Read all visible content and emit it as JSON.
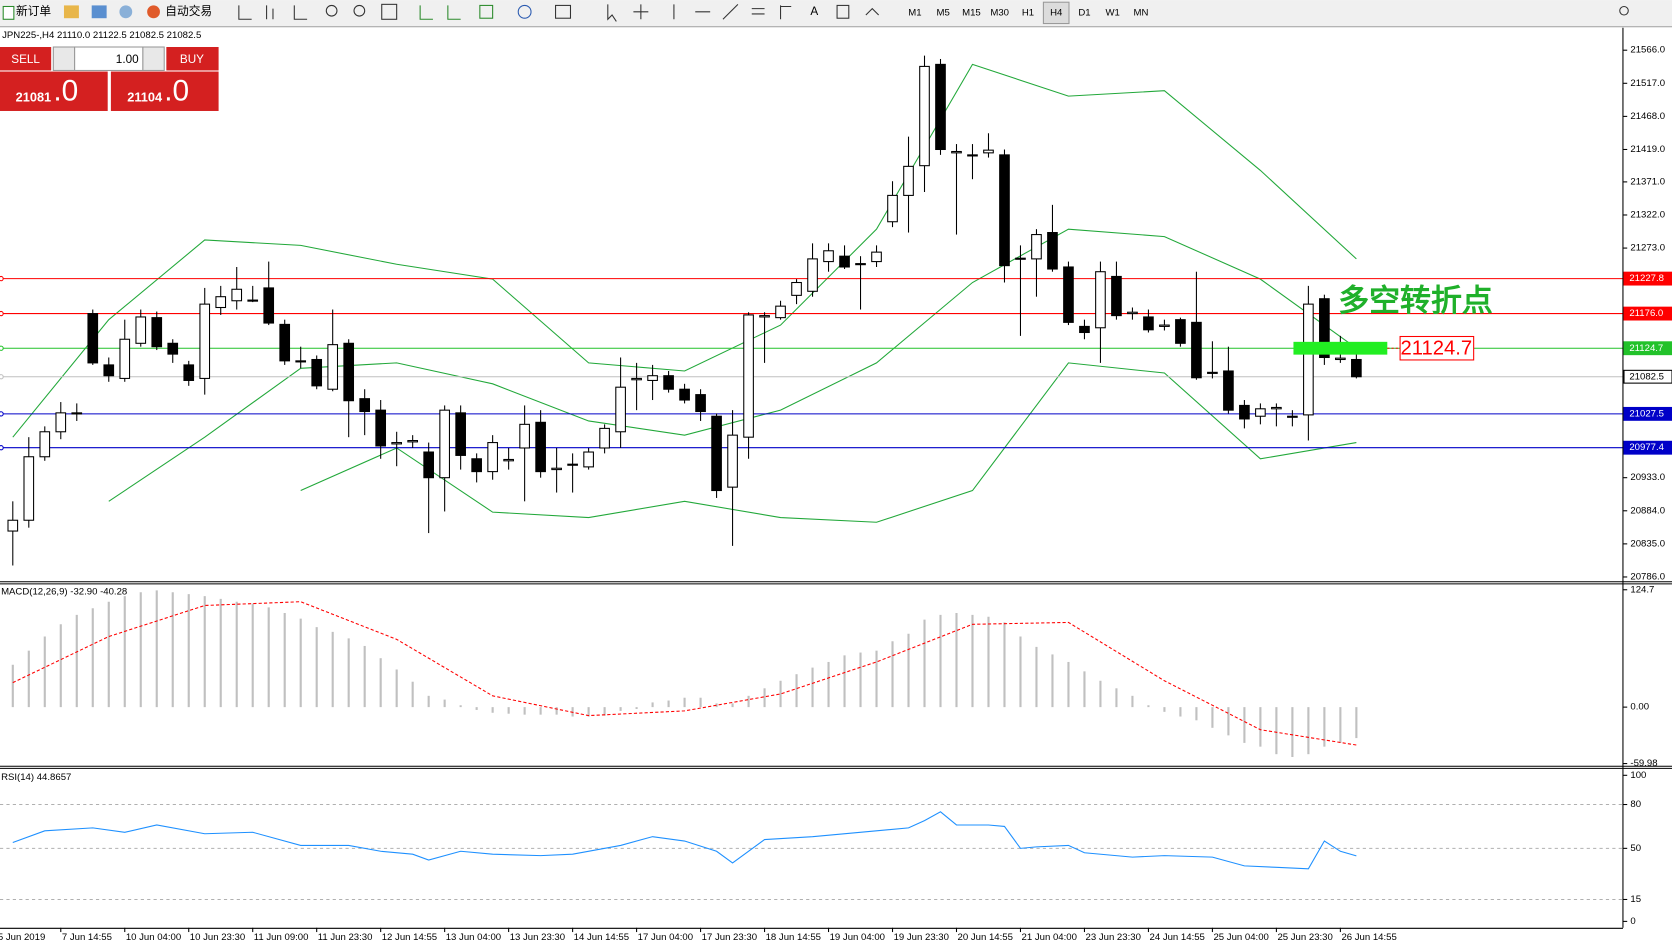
{
  "toolbar": {
    "new_order": "新订单",
    "auto_trading": "自动交易",
    "timeframes": [
      "M1",
      "M5",
      "M15",
      "M30",
      "H1",
      "H4",
      "D1",
      "W1",
      "MN"
    ],
    "active_timeframe": "H4"
  },
  "chart_header": "JPN225-,H4  21110.0 21122.5 21082.5 21082.5",
  "trade_panel": {
    "sell": "SELL",
    "buy": "BUY",
    "lots": "1.00",
    "sell_price": "21081",
    "sell_decimal": ".0",
    "buy_price": "21104",
    "buy_decimal": ".0"
  },
  "time_labels": [
    "5 Jun 2019",
    "7 Jun 14:55",
    "10 Jun 04:00",
    "10 Jun 23:30",
    "11 Jun 09:00",
    "11 Jun 23:30",
    "12 Jun 14:55",
    "13 Jun 04:00",
    "13 Jun 23:30",
    "14 Jun 14:55",
    "17 Jun 04:00",
    "17 Jun 23:30",
    "18 Jun 14:55",
    "19 Jun 04:00",
    "19 Jun 23:30",
    "20 Jun 14:55",
    "21 Jun 04:00",
    "23 Jun 23:30",
    "24 Jun 14:55",
    "25 Jun 04:00",
    "25 Jun 23:30",
    "26 Jun 14:55"
  ],
  "chart_data": [
    {
      "type": "candlestick",
      "ylim": [
        20786,
        21566
      ],
      "yticks": [
        {
          "value": 21566,
          "label": "21566.0"
        },
        {
          "value": 21517,
          "label": "21517.0"
        },
        {
          "value": 21468,
          "label": "21468.0"
        },
        {
          "value": 21419,
          "label": "21419.0"
        },
        {
          "value": 21371,
          "label": "21371.0"
        },
        {
          "value": 21322,
          "label": "21322.0"
        },
        {
          "value": 21273,
          "label": "21273.0"
        },
        {
          "value": 20933,
          "label": "20933.0"
        },
        {
          "value": 20884,
          "label": "20884.0"
        },
        {
          "value": 20835,
          "label": "20835.0"
        },
        {
          "value": 20786,
          "label": "20786.0"
        }
      ],
      "candles": [
        [
          20854,
          20898,
          20803,
          20870
        ],
        [
          20870,
          20993,
          20859,
          20964
        ],
        [
          20964,
          21009,
          20958,
          21001
        ],
        [
          21001,
          21045,
          20990,
          21029
        ],
        [
          21028,
          21043,
          21017,
          21029
        ],
        [
          21176,
          21182,
          21100,
          21103
        ],
        [
          21100,
          21111,
          21075,
          21084
        ],
        [
          21080,
          21167,
          21075,
          21138
        ],
        [
          21132,
          21182,
          21127,
          21171
        ],
        [
          21170,
          21179,
          21122,
          21127
        ],
        [
          21132,
          21138,
          21103,
          21116
        ],
        [
          21100,
          21106,
          21069,
          21077
        ],
        [
          21080,
          21214,
          21056,
          21190
        ],
        [
          21185,
          21217,
          21174,
          21201
        ],
        [
          21195,
          21245,
          21182,
          21212
        ],
        [
          21196,
          21217,
          21193,
          21195
        ],
        [
          21214,
          21253,
          21159,
          21162
        ],
        [
          21160,
          21167,
          21100,
          21106
        ],
        [
          21106,
          21127,
          21095,
          21105
        ],
        [
          21108,
          21114,
          21064,
          21069
        ],
        [
          21064,
          21182,
          21061,
          21130
        ],
        [
          21132,
          21138,
          20993,
          21047
        ],
        [
          21050,
          21064,
          20996,
          21031
        ],
        [
          21033,
          21048,
          20961,
          20980
        ],
        [
          20983,
          21001,
          20950,
          20985
        ],
        [
          20986,
          20996,
          20977,
          20988
        ],
        [
          20971,
          20985,
          20851,
          20933
        ],
        [
          20933,
          21040,
          20883,
          21033
        ],
        [
          21029,
          21040,
          20945,
          20966
        ],
        [
          20961,
          20969,
          20926,
          20942
        ],
        [
          20942,
          20996,
          20930,
          20985
        ],
        [
          20958,
          20977,
          20945,
          20960
        ],
        [
          20977,
          21040,
          20898,
          21012
        ],
        [
          21015,
          21033,
          20933,
          20942
        ],
        [
          20945,
          20977,
          20911,
          20947
        ],
        [
          20952,
          20969,
          20911,
          20953
        ],
        [
          20949,
          20977,
          20945,
          20971
        ],
        [
          20977,
          21012,
          20969,
          21006
        ],
        [
          21001,
          21111,
          20977,
          21067
        ],
        [
          21078,
          21103,
          21033,
          21080
        ],
        [
          21077,
          21100,
          21048,
          21084
        ],
        [
          21084,
          21091,
          21059,
          21064
        ],
        [
          21064,
          21072,
          21043,
          21048
        ],
        [
          21056,
          21064,
          21017,
          21031
        ],
        [
          21024,
          21028,
          20903,
          20914
        ],
        [
          20919,
          21033,
          20832,
          20996
        ],
        [
          20993,
          21178,
          20961,
          21174
        ],
        [
          21171,
          21178,
          21103,
          21173
        ],
        [
          21170,
          21195,
          21167,
          21187
        ],
        [
          21203,
          21227,
          21190,
          21222
        ],
        [
          21209,
          21280,
          21201,
          21257
        ],
        [
          21253,
          21280,
          21238,
          21269
        ],
        [
          21261,
          21277,
          21242,
          21245
        ],
        [
          21249,
          21261,
          21182,
          21250
        ],
        [
          21253,
          21277,
          21245,
          21267
        ],
        [
          21312,
          21372,
          21304,
          21351
        ],
        [
          21351,
          21438,
          21296,
          21394
        ],
        [
          21395,
          21558,
          21356,
          21542
        ],
        [
          21545,
          21553,
          21411,
          21419
        ],
        [
          21414,
          21427,
          21293,
          21416
        ],
        [
          21410,
          21427,
          21375,
          21411
        ],
        [
          21414,
          21443,
          21407,
          21418
        ],
        [
          21411,
          21419,
          21222,
          21247
        ],
        [
          21257,
          21277,
          21143,
          21258
        ],
        [
          21257,
          21301,
          21201,
          21293
        ],
        [
          21296,
          21337,
          21238,
          21242
        ],
        [
          21245,
          21253,
          21159,
          21163
        ],
        [
          21157,
          21167,
          21138,
          21148
        ],
        [
          21155,
          21253,
          21103,
          21238
        ],
        [
          21231,
          21253,
          21167,
          21173
        ],
        [
          21176,
          21185,
          21167,
          21178
        ],
        [
          21171,
          21182,
          21148,
          21152
        ],
        [
          21157,
          21167,
          21151,
          21159
        ],
        [
          21167,
          21170,
          21127,
          21132
        ],
        [
          21163,
          21238,
          21078,
          21081
        ],
        [
          21088,
          21135,
          21080,
          21089
        ],
        [
          21091,
          21127,
          21028,
          21033
        ],
        [
          21040,
          21048,
          21006,
          21020
        ],
        [
          21024,
          21043,
          21012,
          21035
        ],
        [
          21035,
          21043,
          21009,
          21037
        ],
        [
          21023,
          21033,
          21009,
          21024
        ],
        [
          21026,
          21217,
          20988,
          21190
        ],
        [
          21198,
          21204,
          21100,
          21111
        ],
        [
          21108,
          21143,
          21103,
          21110
        ],
        [
          21108,
          21119,
          21080,
          21082.5
        ]
      ],
      "bull_color": "#ffffff",
      "bear_color": "#000000",
      "bands": {
        "color": "#22a83a",
        "x": [
          0,
          6,
          12,
          18,
          24,
          30,
          36,
          42,
          48,
          54,
          60,
          66,
          72,
          78,
          84
        ],
        "upper": [
          20993,
          21167,
          21285,
          21277,
          21249,
          21227,
          21103,
          21091,
          21159,
          21301,
          21545,
          21498,
          21506,
          21388,
          21257
        ],
        "middle": [
          null,
          20898,
          20993,
          21095,
          21103,
          21072,
          21017,
          20996,
          21033,
          21103,
          21222,
          21301,
          21290,
          21227,
          21124.7
        ],
        "lower": [
          null,
          null,
          null,
          20914,
          20977,
          20882,
          20874,
          20898,
          20874,
          20867,
          20914,
          21103,
          21088,
          20961,
          20985
        ]
      },
      "levels": [
        {
          "value": 21227.8,
          "color": "#ff0000"
        },
        {
          "value": 21176,
          "label": "21176.0",
          "color": "#ff0000"
        },
        {
          "value": 21124.7,
          "color": "#22c22a"
        },
        {
          "value": 21082.5,
          "color": "#c0c0c0"
        },
        {
          "value": 21027.5,
          "color": "#0000c8"
        },
        {
          "value": 20977.4,
          "color": "#0000c8"
        }
      ],
      "annotation": {
        "text": "多空转折点",
        "price": 21124.7,
        "color": "#1fb02a"
      }
    },
    {
      "type": "macd",
      "title": "MACD(12,26,9) -32.90 -40.28",
      "ylim": [
        -59.98,
        124.7
      ],
      "yticks": [
        124.7,
        {
          "value": 0,
          "label": "0.00"
        },
        -59.98
      ],
      "histogram": {
        "color": "#c0c0c0",
        "values": [
          45,
          60,
          75,
          88,
          98,
          105,
          112,
          118,
          122,
          124,
          122,
          120,
          118,
          115,
          112,
          110,
          106,
          100,
          94,
          85,
          80,
          73,
          65,
          52,
          40,
          27,
          12,
          8,
          2,
          -3,
          -6,
          -7,
          -8,
          -8,
          -8,
          -10,
          -10,
          -9,
          -4,
          -2,
          5,
          7,
          10,
          10,
          4,
          4,
          12,
          20,
          28,
          35,
          42,
          48,
          55,
          58,
          60,
          70,
          78,
          93,
          98,
          100,
          98,
          96,
          90,
          75,
          64,
          56,
          48,
          38,
          28,
          20,
          12,
          2,
          -5,
          -10,
          -14,
          -22,
          -30,
          -38,
          -42,
          -50,
          -53,
          -50,
          -42,
          -38,
          -32.9
        ]
      },
      "signal": {
        "color": "#ff0000",
        "x": [
          0,
          6,
          12,
          18,
          24,
          30,
          36,
          42,
          48,
          54,
          60,
          66,
          72,
          78,
          84
        ],
        "values": [
          26,
          75,
          108,
          112,
          72,
          12,
          -9,
          -4,
          14,
          48,
          88,
          90,
          28,
          -24,
          -40.28
        ]
      }
    },
    {
      "type": "rsi",
      "title": "RSI(14) 44.8657",
      "ylim": [
        0,
        100
      ],
      "yticks": [
        100,
        80,
        50,
        15,
        0
      ],
      "series": {
        "color": "#1e90ff",
        "x": [
          0,
          2,
          5,
          7,
          9,
          12,
          15,
          18,
          21,
          23,
          25,
          26,
          28,
          30,
          33,
          35,
          38,
          40,
          42,
          44,
          45,
          47,
          50,
          54,
          56,
          57,
          58,
          59,
          61,
          62,
          63,
          64,
          66,
          67,
          70,
          72,
          75,
          77,
          79,
          81,
          82,
          83,
          84
        ],
        "values": [
          54,
          62,
          64,
          61,
          66,
          60,
          61,
          52,
          52,
          48,
          46,
          42,
          48,
          46,
          45,
          46,
          52,
          58,
          55,
          48,
          40,
          56,
          58,
          62,
          64,
          69,
          75,
          66,
          66,
          65,
          50,
          51,
          52,
          47,
          44,
          45,
          44,
          38,
          37,
          36,
          55,
          48,
          44.8657
        ]
      }
    }
  ]
}
